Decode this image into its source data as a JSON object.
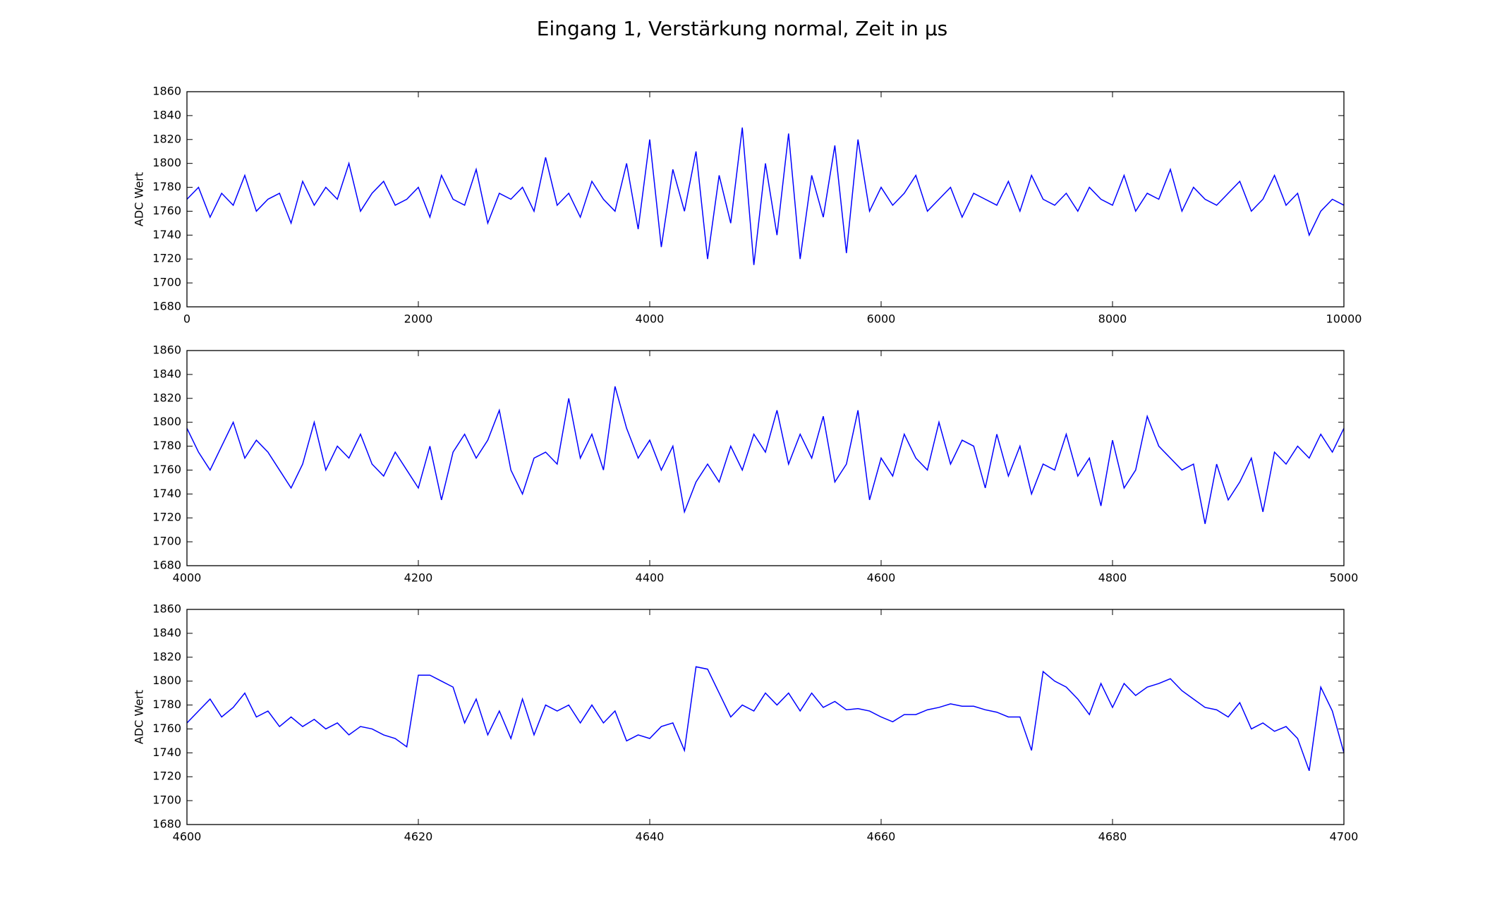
{
  "title": "Eingang 1, Verstärkung normal, Zeit in μs",
  "chart_data": [
    {
      "type": "line",
      "ylabel": "ADC Wert",
      "color": "#0000ff",
      "x": [
        0,
        100,
        200,
        300,
        400,
        500,
        600,
        700,
        800,
        900,
        1000,
        1100,
        1200,
        1300,
        1400,
        1500,
        1600,
        1700,
        1800,
        1900,
        2000,
        2100,
        2200,
        2300,
        2400,
        2500,
        2600,
        2700,
        2800,
        2900,
        3000,
        3100,
        3200,
        3300,
        3400,
        3500,
        3600,
        3700,
        3800,
        3900,
        4000,
        4100,
        4200,
        4300,
        4400,
        4500,
        4600,
        4700,
        4800,
        4900,
        5000,
        5100,
        5200,
        5300,
        5400,
        5500,
        5600,
        5700,
        5800,
        5900,
        6000,
        6100,
        6200,
        6300,
        6400,
        6500,
        6600,
        6700,
        6800,
        6900,
        7000,
        7100,
        7200,
        7300,
        7400,
        7500,
        7600,
        7700,
        7800,
        7900,
        8000,
        8100,
        8200,
        8300,
        8400,
        8500,
        8600,
        8700,
        8800,
        8900,
        9000,
        9100,
        9200,
        9300,
        9400,
        9500,
        9600,
        9700,
        9800,
        9900,
        10000
      ],
      "values": [
        1770,
        1780,
        1755,
        1775,
        1765,
        1790,
        1760,
        1770,
        1775,
        1750,
        1785,
        1765,
        1780,
        1770,
        1800,
        1760,
        1775,
        1785,
        1765,
        1770,
        1780,
        1755,
        1790,
        1770,
        1765,
        1795,
        1750,
        1775,
        1770,
        1780,
        1760,
        1805,
        1765,
        1775,
        1755,
        1785,
        1770,
        1760,
        1800,
        1745,
        1820,
        1730,
        1795,
        1760,
        1810,
        1720,
        1790,
        1750,
        1830,
        1715,
        1800,
        1740,
        1825,
        1720,
        1790,
        1755,
        1815,
        1725,
        1820,
        1760,
        1780,
        1765,
        1775,
        1790,
        1760,
        1770,
        1780,
        1755,
        1775,
        1770,
        1765,
        1785,
        1760,
        1790,
        1770,
        1765,
        1775,
        1760,
        1780,
        1770,
        1765,
        1790,
        1760,
        1775,
        1770,
        1795,
        1760,
        1780,
        1770,
        1765,
        1775,
        1785,
        1760,
        1770,
        1790,
        1765,
        1775,
        1740,
        1760,
        1770,
        1765
      ],
      "xlim": [
        0,
        10000
      ],
      "xticks": [
        0,
        2000,
        4000,
        6000,
        8000,
        10000
      ],
      "ylim": [
        1680,
        1860
      ],
      "yticks": [
        1680,
        1700,
        1720,
        1740,
        1760,
        1780,
        1800,
        1820,
        1840,
        1860
      ]
    },
    {
      "type": "line",
      "color": "#0000ff",
      "x": [
        4000,
        4010,
        4020,
        4030,
        4040,
        4050,
        4060,
        4070,
        4080,
        4090,
        4100,
        4110,
        4120,
        4130,
        4140,
        4150,
        4160,
        4170,
        4180,
        4190,
        4200,
        4210,
        4220,
        4230,
        4240,
        4250,
        4260,
        4270,
        4280,
        4290,
        4300,
        4310,
        4320,
        4330,
        4340,
        4350,
        4360,
        4370,
        4380,
        4390,
        4400,
        4410,
        4420,
        4430,
        4440,
        4450,
        4460,
        4470,
        4480,
        4490,
        4500,
        4510,
        4520,
        4530,
        4540,
        4550,
        4560,
        4570,
        4580,
        4590,
        4600,
        4610,
        4620,
        4630,
        4640,
        4650,
        4660,
        4670,
        4680,
        4690,
        4700,
        4710,
        4720,
        4730,
        4740,
        4750,
        4760,
        4770,
        4780,
        4790,
        4800,
        4810,
        4820,
        4830,
        4840,
        4850,
        4860,
        4870,
        4880,
        4890,
        4900,
        4910,
        4920,
        4930,
        4940,
        4950,
        4960,
        4970,
        4980,
        4990,
        5000
      ],
      "values": [
        1795,
        1775,
        1760,
        1780,
        1800,
        1770,
        1785,
        1775,
        1760,
        1745,
        1765,
        1800,
        1760,
        1780,
        1770,
        1790,
        1765,
        1755,
        1775,
        1760,
        1745,
        1780,
        1735,
        1775,
        1790,
        1770,
        1785,
        1810,
        1760,
        1740,
        1770,
        1775,
        1765,
        1820,
        1770,
        1790,
        1760,
        1830,
        1795,
        1770,
        1785,
        1760,
        1780,
        1725,
        1750,
        1765,
        1750,
        1780,
        1760,
        1790,
        1775,
        1810,
        1765,
        1790,
        1770,
        1805,
        1750,
        1765,
        1810,
        1735,
        1770,
        1755,
        1790,
        1770,
        1760,
        1800,
        1765,
        1785,
        1780,
        1745,
        1790,
        1755,
        1780,
        1740,
        1765,
        1760,
        1790,
        1755,
        1770,
        1730,
        1785,
        1745,
        1760,
        1805,
        1780,
        1770,
        1760,
        1765,
        1715,
        1765,
        1735,
        1750,
        1770,
        1725,
        1775,
        1765,
        1780,
        1770,
        1790,
        1775,
        1795
      ],
      "xlim": [
        4000,
        5000
      ],
      "xticks": [
        4000,
        4200,
        4400,
        4600,
        4800,
        5000
      ],
      "ylim": [
        1680,
        1860
      ],
      "yticks": [
        1680,
        1700,
        1720,
        1740,
        1760,
        1780,
        1800,
        1820,
        1840,
        1860
      ]
    },
    {
      "type": "line",
      "ylabel": "ADC Wert",
      "color": "#0000ff",
      "x": [
        4600,
        4601,
        4602,
        4603,
        4604,
        4605,
        4606,
        4607,
        4608,
        4609,
        4610,
        4611,
        4612,
        4613,
        4614,
        4615,
        4616,
        4617,
        4618,
        4619,
        4620,
        4621,
        4622,
        4623,
        4624,
        4625,
        4626,
        4627,
        4628,
        4629,
        4630,
        4631,
        4632,
        4633,
        4634,
        4635,
        4636,
        4637,
        4638,
        4639,
        4640,
        4641,
        4642,
        4643,
        4644,
        4645,
        4646,
        4647,
        4648,
        4649,
        4650,
        4651,
        4652,
        4653,
        4654,
        4655,
        4656,
        4657,
        4658,
        4659,
        4660,
        4661,
        4662,
        4663,
        4664,
        4665,
        4666,
        4667,
        4668,
        4669,
        4670,
        4671,
        4672,
        4673,
        4674,
        4675,
        4676,
        4677,
        4678,
        4679,
        4680,
        4681,
        4682,
        4683,
        4684,
        4685,
        4686,
        4687,
        4688,
        4689,
        4690,
        4691,
        4692,
        4693,
        4694,
        4695,
        4696,
        4697,
        4698,
        4699,
        4700
      ],
      "values": [
        1765,
        1775,
        1785,
        1770,
        1778,
        1790,
        1770,
        1775,
        1762,
        1770,
        1762,
        1768,
        1760,
        1765,
        1755,
        1762,
        1760,
        1755,
        1752,
        1745,
        1805,
        1805,
        1800,
        1795,
        1765,
        1785,
        1755,
        1775,
        1752,
        1785,
        1755,
        1780,
        1775,
        1780,
        1765,
        1780,
        1765,
        1775,
        1750,
        1755,
        1752,
        1762,
        1765,
        1742,
        1812,
        1810,
        1790,
        1770,
        1780,
        1775,
        1790,
        1780,
        1790,
        1775,
        1790,
        1778,
        1783,
        1776,
        1777,
        1775,
        1770,
        1766,
        1772,
        1772,
        1776,
        1778,
        1781,
        1779,
        1779,
        1776,
        1774,
        1770,
        1770,
        1742,
        1808,
        1800,
        1795,
        1785,
        1772,
        1798,
        1778,
        1798,
        1788,
        1795,
        1798,
        1802,
        1792,
        1785,
        1778,
        1776,
        1770,
        1782,
        1760,
        1765,
        1758,
        1762,
        1752,
        1725,
        1795,
        1775,
        1740
      ],
      "xlim": [
        4600,
        4700
      ],
      "xticks": [
        4600,
        4620,
        4640,
        4660,
        4680,
        4700
      ],
      "ylim": [
        1680,
        1860
      ],
      "yticks": [
        1680,
        1700,
        1720,
        1740,
        1760,
        1780,
        1800,
        1820,
        1840,
        1860
      ]
    }
  ]
}
